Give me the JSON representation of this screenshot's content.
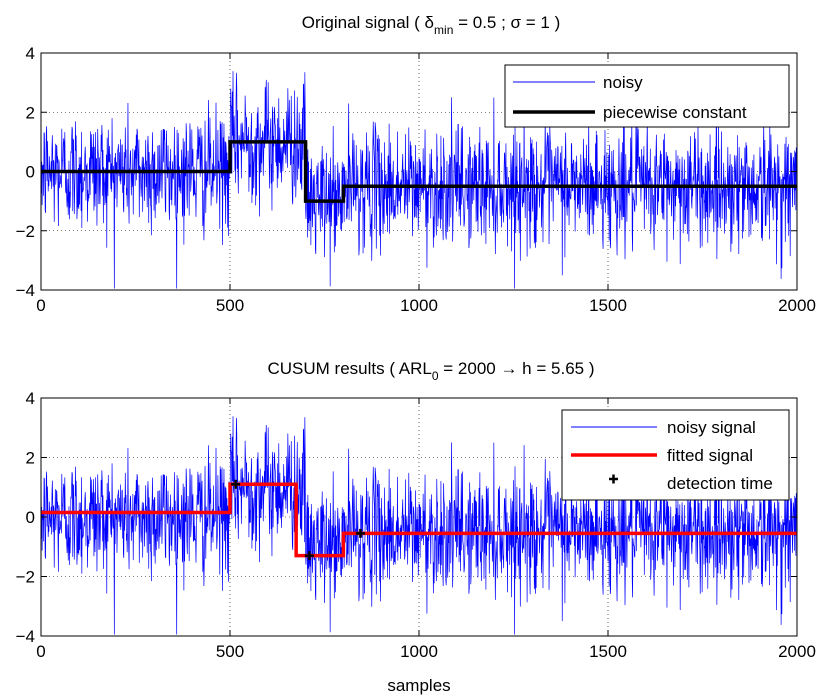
{
  "chart_data": [
    {
      "type": "line",
      "title_main": "Original signal ( δ",
      "title_sub": "min",
      "title_rest": " = 0.5 ; σ  = 1 )",
      "xlim": [
        0,
        2000
      ],
      "ylim": [
        -4,
        4
      ],
      "x_ticks": [
        "0",
        "500",
        "1000",
        "1500",
        "2000"
      ],
      "y_ticks": [
        "4",
        "2",
        "0",
        "−2",
        "−4"
      ],
      "grid": true,
      "legend_position": "top-right",
      "series": [
        {
          "name": "noisy",
          "color": "#0000ff",
          "kind": "noise",
          "noise_std": 1,
          "segments": [
            {
              "x_start": 0,
              "x_end": 500,
              "level": 0
            },
            {
              "x_start": 500,
              "x_end": 700,
              "level": 1
            },
            {
              "x_start": 700,
              "x_end": 800,
              "level": -1
            },
            {
              "x_start": 800,
              "x_end": 2000,
              "level": -0.5
            }
          ]
        },
        {
          "name": "piecewise constant",
          "color": "#000000",
          "kind": "step",
          "x": [
            0,
            500,
            500,
            700,
            700,
            800,
            800,
            2000
          ],
          "y": [
            0,
            0,
            1,
            1,
            -1,
            -1,
            -0.5,
            -0.5
          ]
        }
      ]
    },
    {
      "type": "line",
      "title_main": "CUSUM results ( ARL",
      "title_sub": "0",
      "title_rest": " = 2000 →  h = 5.65 )",
      "xlabel": "samples",
      "xlim": [
        0,
        2000
      ],
      "ylim": [
        -4,
        4
      ],
      "x_ticks": [
        "0",
        "500",
        "1000",
        "1500",
        "2000"
      ],
      "y_ticks": [
        "4",
        "2",
        "0",
        "−2",
        "−4"
      ],
      "grid": true,
      "legend_position": "top-right",
      "series": [
        {
          "name": "noisy signal",
          "color": "#0000ff",
          "kind": "noise",
          "noise_std": 1,
          "segments": [
            {
              "x_start": 0,
              "x_end": 500,
              "level": 0
            },
            {
              "x_start": 500,
              "x_end": 700,
              "level": 1
            },
            {
              "x_start": 700,
              "x_end": 800,
              "level": -1
            },
            {
              "x_start": 800,
              "x_end": 2000,
              "level": -0.5
            }
          ]
        },
        {
          "name": "fitted signal",
          "color": "#ff0000",
          "kind": "step",
          "x": [
            0,
            500,
            500,
            675,
            675,
            800,
            800,
            2000
          ],
          "y": [
            0.15,
            0.15,
            1.1,
            1.1,
            -1.3,
            -1.3,
            -0.55,
            -0.55
          ]
        },
        {
          "name": "detection time",
          "color": "#000000",
          "kind": "markers",
          "x": [
            515,
            710,
            845
          ],
          "y": [
            1.1,
            -1.3,
            -0.55
          ]
        }
      ]
    }
  ]
}
